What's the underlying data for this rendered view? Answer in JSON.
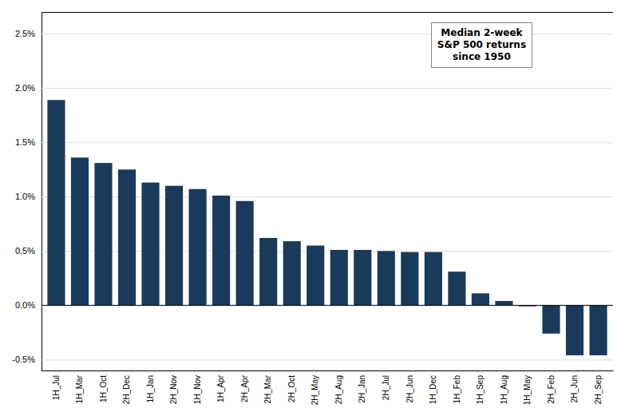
{
  "chart_data": {
    "type": "bar",
    "categories": [
      "1H_Jul",
      "1H_Mar",
      "1H_Oct",
      "2H_Dec",
      "1H_Jan",
      "2H_Nov",
      "1H_Nov",
      "1H_Apr",
      "2H_Apr",
      "2H_Mar",
      "2H_Oct",
      "2H_May",
      "2H_Aug",
      "2H_Jan",
      "2H_Jul",
      "2H_Jun",
      "1H_Dec",
      "1H_Feb",
      "1H_Sep",
      "1H_Aug",
      "1H_May",
      "2H_Feb",
      "2H_Jun",
      "2H_Sep"
    ],
    "values": [
      1.89,
      1.36,
      1.31,
      1.25,
      1.13,
      1.1,
      1.07,
      1.01,
      0.96,
      0.62,
      0.59,
      0.55,
      0.51,
      0.51,
      0.5,
      0.49,
      0.49,
      0.31,
      0.11,
      0.04,
      -0.01,
      -0.26,
      -0.46,
      -0.46
    ],
    "color": "#1a3a5c",
    "annotation": "Median 2-week\nS&P 500 returns\nsince 1950",
    "ylim": [
      -0.6,
      2.7
    ],
    "yticks": [
      {
        "value": -0.5,
        "label": "-0.5%"
      },
      {
        "value": 0.0,
        "label": "0.0%"
      },
      {
        "value": 0.5,
        "label": "0.5%"
      },
      {
        "value": 1.0,
        "label": "1.0%"
      },
      {
        "value": 1.5,
        "label": "1.5%"
      },
      {
        "value": 2.0,
        "label": "2.0%"
      },
      {
        "value": 2.5,
        "label": "2.5%"
      }
    ],
    "grid": true
  }
}
